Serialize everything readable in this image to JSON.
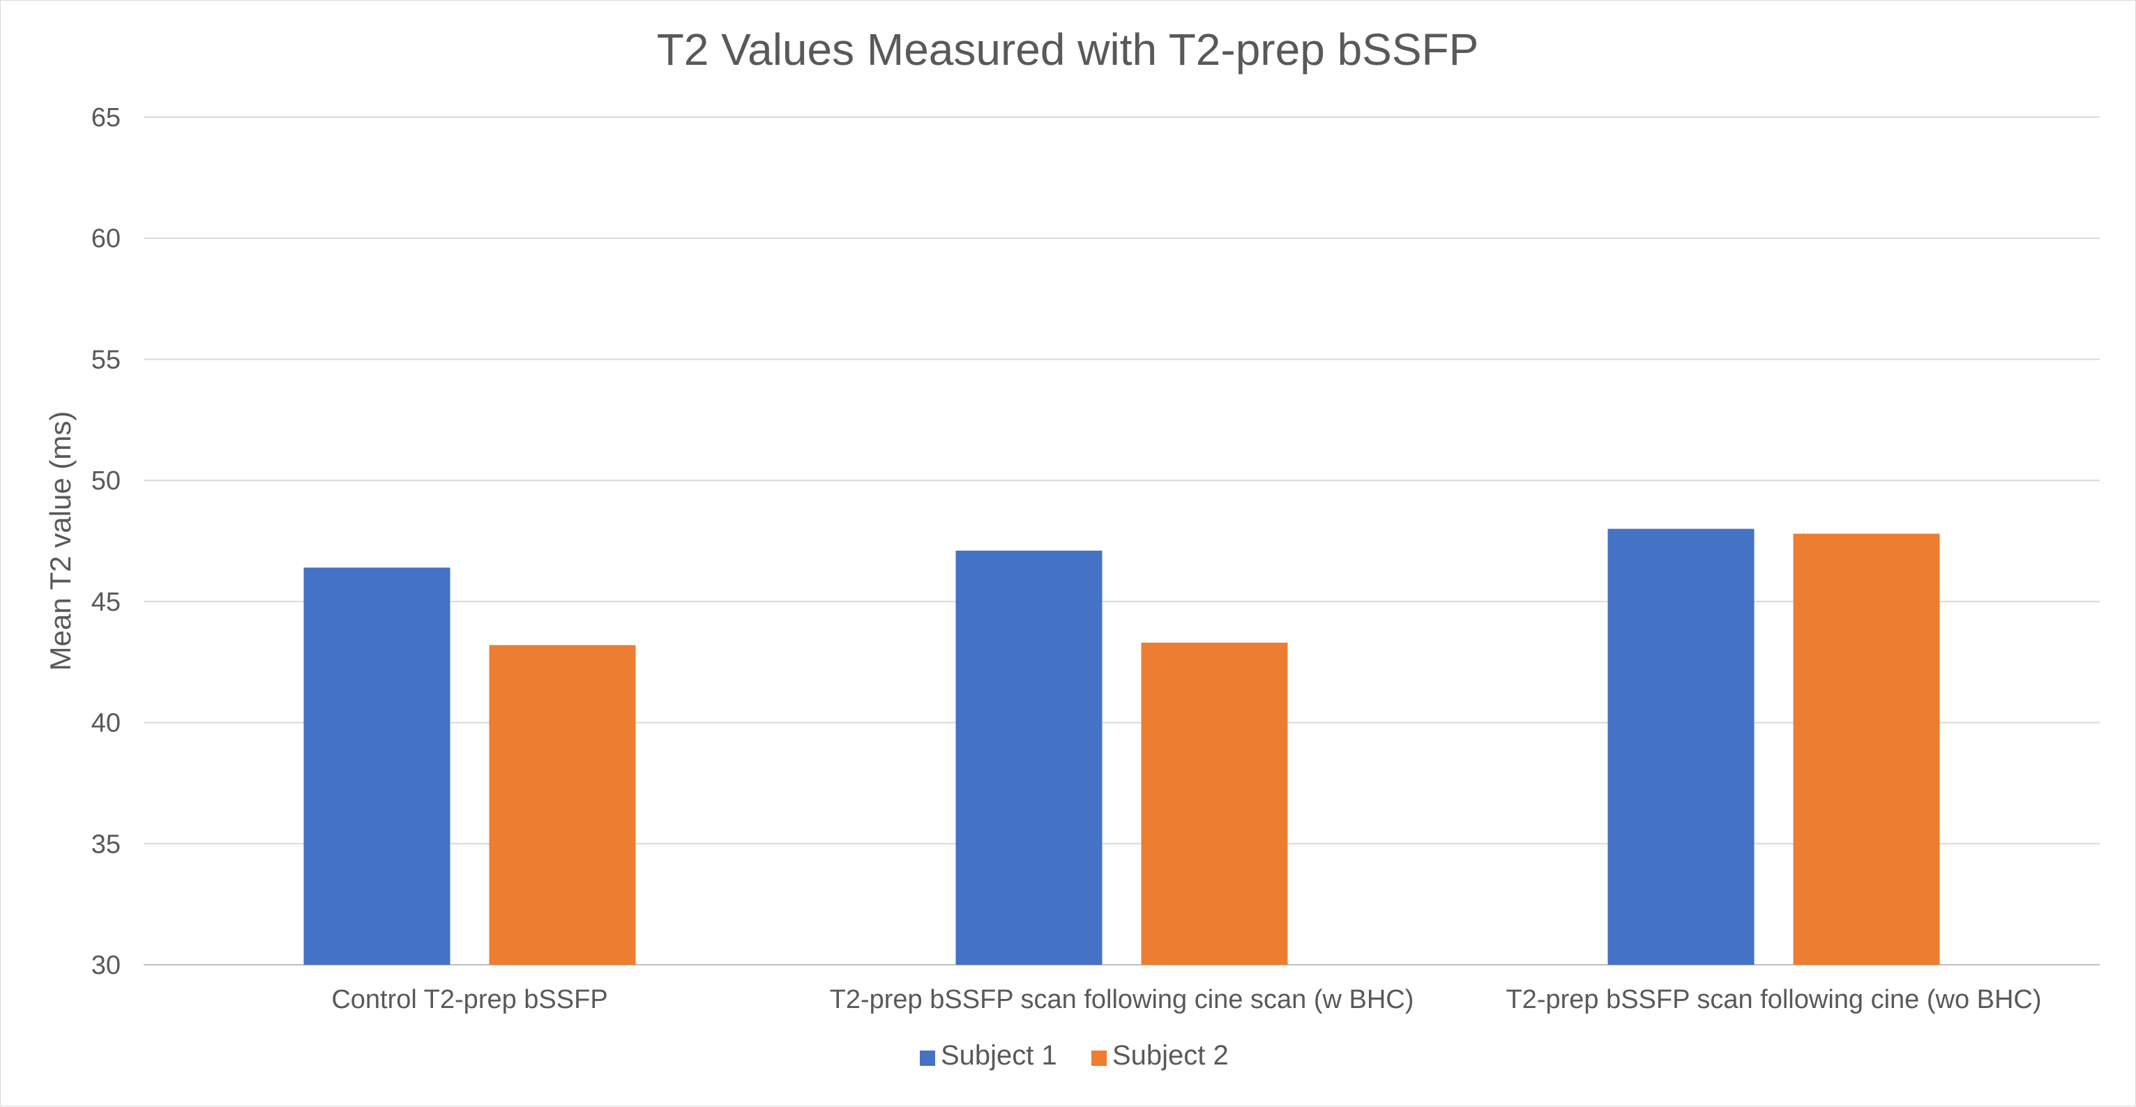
{
  "chart_data": {
    "type": "bar",
    "title": "T2 Values Measured with T2-prep bSSFP",
    "xlabel": "",
    "ylabel": "Mean T2 value (ms)",
    "ylim": [
      30,
      65
    ],
    "yticks": [
      30,
      35,
      40,
      45,
      50,
      55,
      60,
      65
    ],
    "grid": true,
    "legend_position": "bottom",
    "categories": [
      "Control T2-prep bSSFP",
      "T2-prep bSSFP scan following cine scan (w BHC)",
      "T2-prep bSSFP scan following cine (wo BHC)"
    ],
    "series": [
      {
        "name": "Subject 1",
        "color": "#4472c4",
        "values": [
          46.4,
          47.1,
          48.0
        ]
      },
      {
        "name": "Subject 2",
        "color": "#ed7d31",
        "values": [
          43.2,
          43.3,
          47.8
        ]
      }
    ]
  }
}
